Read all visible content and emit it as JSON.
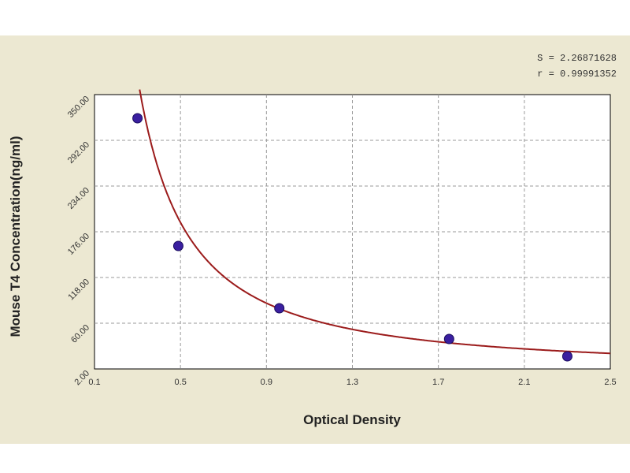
{
  "chart_data": {
    "type": "scatter",
    "title": "",
    "xlabel": "Optical Density",
    "ylabel": "Mouse T4 Concentration(ng/ml)",
    "xlim": [
      0.1,
      2.5
    ],
    "ylim": [
      2.0,
      350.0
    ],
    "x_ticks": [
      "0.1",
      "0.5",
      "0.9",
      "1.3",
      "1.7",
      "2.1",
      "2.5"
    ],
    "y_ticks": [
      "2.00",
      "60.00",
      "118.00",
      "176.00",
      "234.00",
      "292.00",
      "350.00"
    ],
    "grid": true,
    "points": [
      {
        "x": 0.3,
        "y": 320
      },
      {
        "x": 0.49,
        "y": 158
      },
      {
        "x": 0.96,
        "y": 79
      },
      {
        "x": 1.75,
        "y": 40
      },
      {
        "x": 2.3,
        "y": 18
      }
    ],
    "fit_curve": {
      "type": "power",
      "a": 74.2,
      "b": -1.34
    },
    "annotations": {
      "s": "S = 2.26871628",
      "r": "r = 0.99991352"
    },
    "colors": {
      "background": "#ece8d2",
      "plot_area": "#ffffff",
      "curve": "#9b1b1b",
      "points": "#3a1fa0",
      "grid": "#9a9a9a"
    }
  }
}
